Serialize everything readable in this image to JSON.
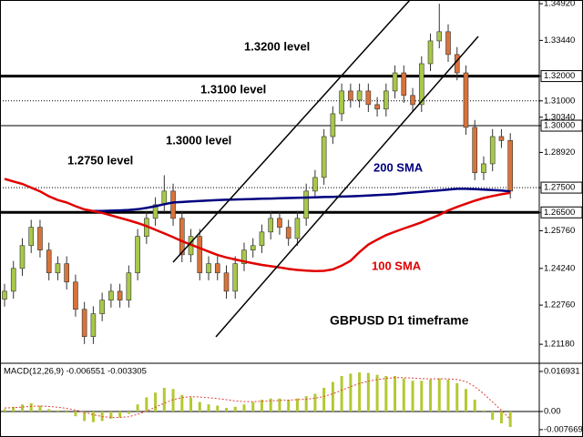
{
  "chart_data": [
    {
      "type": "candlestick",
      "title": "GBPUSD D1 timeframe",
      "up_color": "#a8c84a",
      "down_color": "#d9733a",
      "open": [
        1.23,
        1.2332,
        1.2424,
        1.2516,
        1.259,
        1.2498,
        1.2406,
        1.2443,
        1.2369,
        1.2259,
        1.2149,
        1.2241,
        1.2296,
        1.2332,
        1.2296,
        1.2406,
        1.2553,
        1.2626,
        1.2681,
        1.2736,
        1.2626,
        1.2479,
        1.2553,
        1.2406,
        1.2443,
        1.2406,
        1.2332,
        1.2443,
        1.2498,
        1.2516,
        1.2571,
        1.2626,
        1.259,
        1.2545,
        1.2626,
        1.2736,
        1.2791,
        1.2956,
        1.3048,
        1.314,
        1.3103,
        1.314,
        1.3085,
        1.3067,
        1.314,
        1.3213,
        1.3122,
        1.3085,
        1.325,
        1.3342,
        1.3379,
        1.3287,
        1.3213,
        1.2993,
        1.281,
        1.2846,
        1.2956,
        1.294
      ],
      "high": [
        1.2362,
        1.2454,
        1.2546,
        1.262,
        1.262,
        1.2528,
        1.2473,
        1.2473,
        1.2399,
        1.2289,
        1.2271,
        1.2326,
        1.2362,
        1.2362,
        1.2436,
        1.2583,
        1.2656,
        1.2711,
        1.28,
        1.2766,
        1.2656,
        1.2583,
        1.2583,
        1.2473,
        1.2473,
        1.2436,
        1.2473,
        1.2528,
        1.2546,
        1.2601,
        1.2656,
        1.2656,
        1.262,
        1.2656,
        1.2766,
        1.2821,
        1.2986,
        1.3078,
        1.317,
        1.317,
        1.317,
        1.317,
        1.3115,
        1.317,
        1.3243,
        1.3243,
        1.3152,
        1.328,
        1.3372,
        1.3492,
        1.3409,
        1.3317,
        1.3243,
        1.3023,
        1.2876,
        1.2986,
        1.2986,
        1.297
      ],
      "low": [
        1.227,
        1.2302,
        1.2394,
        1.2486,
        1.2468,
        1.2376,
        1.2376,
        1.2339,
        1.2229,
        1.2119,
        1.2119,
        1.2211,
        1.2266,
        1.2266,
        1.2266,
        1.2376,
        1.2523,
        1.2596,
        1.2651,
        1.2596,
        1.2449,
        1.2449,
        1.2376,
        1.2376,
        1.2376,
        1.2302,
        1.2302,
        1.2413,
        1.2468,
        1.2486,
        1.2541,
        1.256,
        1.2515,
        1.2515,
        1.2596,
        1.2706,
        1.2761,
        1.2926,
        1.3018,
        1.3073,
        1.3073,
        1.3055,
        1.3037,
        1.3037,
        1.311,
        1.3092,
        1.3055,
        1.3055,
        1.322,
        1.3312,
        1.3257,
        1.3183,
        1.2963,
        1.278,
        1.278,
        1.2816,
        1.291,
        1.2706
      ],
      "close": [
        1.2332,
        1.2424,
        1.2516,
        1.259,
        1.2498,
        1.2406,
        1.2443,
        1.2369,
        1.2259,
        1.2149,
        1.2241,
        1.2296,
        1.2332,
        1.2296,
        1.2406,
        1.2553,
        1.2626,
        1.2681,
        1.2736,
        1.2626,
        1.2479,
        1.2553,
        1.2406,
        1.2443,
        1.2406,
        1.2332,
        1.2443,
        1.2498,
        1.2516,
        1.2571,
        1.2626,
        1.259,
        1.2545,
        1.2626,
        1.2736,
        1.2791,
        1.2956,
        1.3048,
        1.314,
        1.3103,
        1.314,
        1.3085,
        1.3067,
        1.314,
        1.3213,
        1.3122,
        1.3085,
        1.325,
        1.3342,
        1.3379,
        1.3287,
        1.3213,
        1.2993,
        1.281,
        1.2846,
        1.2956,
        1.294,
        1.2736
      ],
      "series": [
        {
          "name": "200 SMA",
          "color": "#000080",
          "values": [
            null,
            null,
            null,
            null,
            null,
            null,
            null,
            null,
            null,
            null,
            1.2656,
            1.2656,
            1.2657,
            1.2658,
            1.266,
            1.2663,
            1.2668,
            1.2675,
            1.2683,
            1.269,
            1.2692,
            1.2694,
            1.2696,
            1.2698,
            1.27,
            1.2701,
            1.2702,
            1.2703,
            1.2704,
            1.2705,
            1.2706,
            1.2707,
            1.2708,
            1.2709,
            1.271,
            1.2711,
            1.2712,
            1.2713,
            1.2714,
            1.2715,
            1.2716,
            1.2718,
            1.272,
            1.2722,
            1.2724,
            1.2727,
            1.273,
            1.2733,
            1.2736,
            1.2739,
            1.2742,
            1.2745,
            1.2745,
            1.2744,
            1.2742,
            1.274,
            1.2738,
            1.2735
          ]
        },
        {
          "name": "100 SMA",
          "color": "#e00000",
          "values": [
            1.2785,
            1.2775,
            1.2765,
            1.275,
            1.2735,
            1.2715,
            1.27,
            1.269,
            1.2675,
            1.2662,
            1.2655,
            1.2648,
            1.2638,
            1.2628,
            1.2618,
            1.2607,
            1.2595,
            1.258,
            1.2565,
            1.255,
            1.2534,
            1.252,
            1.2506,
            1.2492,
            1.2478,
            1.2468,
            1.246,
            1.2452,
            1.2445,
            1.2438,
            1.2433,
            1.2428,
            1.2422,
            1.2418,
            1.2415,
            1.2413,
            1.2414,
            1.242,
            1.2435,
            1.2455,
            1.249,
            1.252,
            1.254,
            1.2558,
            1.2572,
            1.2585,
            1.2597,
            1.261,
            1.2625,
            1.264,
            1.2658,
            1.2672,
            1.2685,
            1.2697,
            1.2708,
            1.2716,
            1.2723,
            1.2729
          ]
        }
      ],
      "ylim": [
        1.2045,
        1.3507
      ],
      "yticks": [
        {
          "value": 1.3492,
          "label": "1.34920"
        },
        {
          "value": 1.3344,
          "label": "1.33440"
        },
        {
          "value": 1.32,
          "label": "1.32000",
          "boxed": true
        },
        {
          "value": 1.31,
          "label": "1.31000"
        },
        {
          "value": 1.3034,
          "label": "1.30340"
        },
        {
          "value": 1.3,
          "label": "1.30000",
          "boxed": true
        },
        {
          "value": 1.2892,
          "label": "1.28920"
        },
        {
          "value": 1.275,
          "label": "1.27500",
          "boxed": true
        },
        {
          "value": 1.265,
          "label": "1.26500",
          "boxed": true
        },
        {
          "value": 1.2576,
          "label": "1.25760"
        },
        {
          "value": 1.2424,
          "label": "1.24240"
        },
        {
          "value": 1.2276,
          "label": "1.22760"
        },
        {
          "value": 1.2118,
          "label": "1.21180"
        }
      ],
      "levels": [
        {
          "value": 1.32,
          "style": "thick",
          "label": "1.3200 level"
        },
        {
          "value": 1.31,
          "style": "dotted",
          "label": "1.3100 level"
        },
        {
          "value": 1.3,
          "style": "thin",
          "label": "1.3000 level"
        },
        {
          "value": 1.275,
          "style": "dotted",
          "label": "1.2750 level"
        },
        {
          "value": 1.265,
          "style": "thick"
        }
      ]
    },
    {
      "type": "macd",
      "title": "MACD(12,26,9) -0.006551 -0.003305",
      "color": "#b5c832",
      "signal_color": "#e04040",
      "values": [
        0.001,
        0.002,
        0.003,
        0.0035,
        0.0025,
        0.001,
        0.0005,
        -0.0005,
        -0.002,
        -0.004,
        -0.0045,
        -0.004,
        -0.003,
        -0.0025,
        -0.001,
        0.003,
        0.006,
        0.008,
        0.01,
        0.0095,
        0.007,
        0.006,
        0.004,
        0.003,
        0.0025,
        0.0015,
        0.002,
        0.003,
        0.004,
        0.005,
        0.0055,
        0.0055,
        0.005,
        0.0055,
        0.0065,
        0.0075,
        0.01,
        0.0125,
        0.015,
        0.016,
        0.0165,
        0.0163,
        0.0155,
        0.015,
        0.015,
        0.014,
        0.013,
        0.013,
        0.0135,
        0.014,
        0.0135,
        0.012,
        0.0095,
        0.005,
        0.0005,
        -0.0035,
        -0.005,
        -0.006551
      ],
      "signal": [
        0.0015,
        0.0016,
        0.0019,
        0.0022,
        0.0023,
        0.0021,
        0.0018,
        0.0013,
        0.0006,
        -0.0004,
        -0.0014,
        -0.0021,
        -0.0025,
        -0.0025,
        -0.0022,
        -0.0012,
        0.0002,
        0.0018,
        0.0035,
        0.005,
        0.0059,
        0.0063,
        0.0061,
        0.0058,
        0.0055,
        0.005,
        0.0045,
        0.0042,
        0.0042,
        0.0043,
        0.0045,
        0.0047,
        0.0048,
        0.005,
        0.0052,
        0.0056,
        0.0064,
        0.0075,
        0.009,
        0.0105,
        0.0118,
        0.0128,
        0.0135,
        0.014,
        0.0143,
        0.0143,
        0.0141,
        0.0139,
        0.0138,
        0.0138,
        0.0138,
        0.0135,
        0.0127,
        0.0105,
        0.0075,
        0.004,
        0.0005,
        -0.003305
      ],
      "ylim": [
        -0.01,
        0.02
      ],
      "yticks": [
        0.016931,
        {
          "value": 0,
          "label": "0.00"
        },
        -0.007669
      ],
      "zero_line": true
    }
  ]
}
